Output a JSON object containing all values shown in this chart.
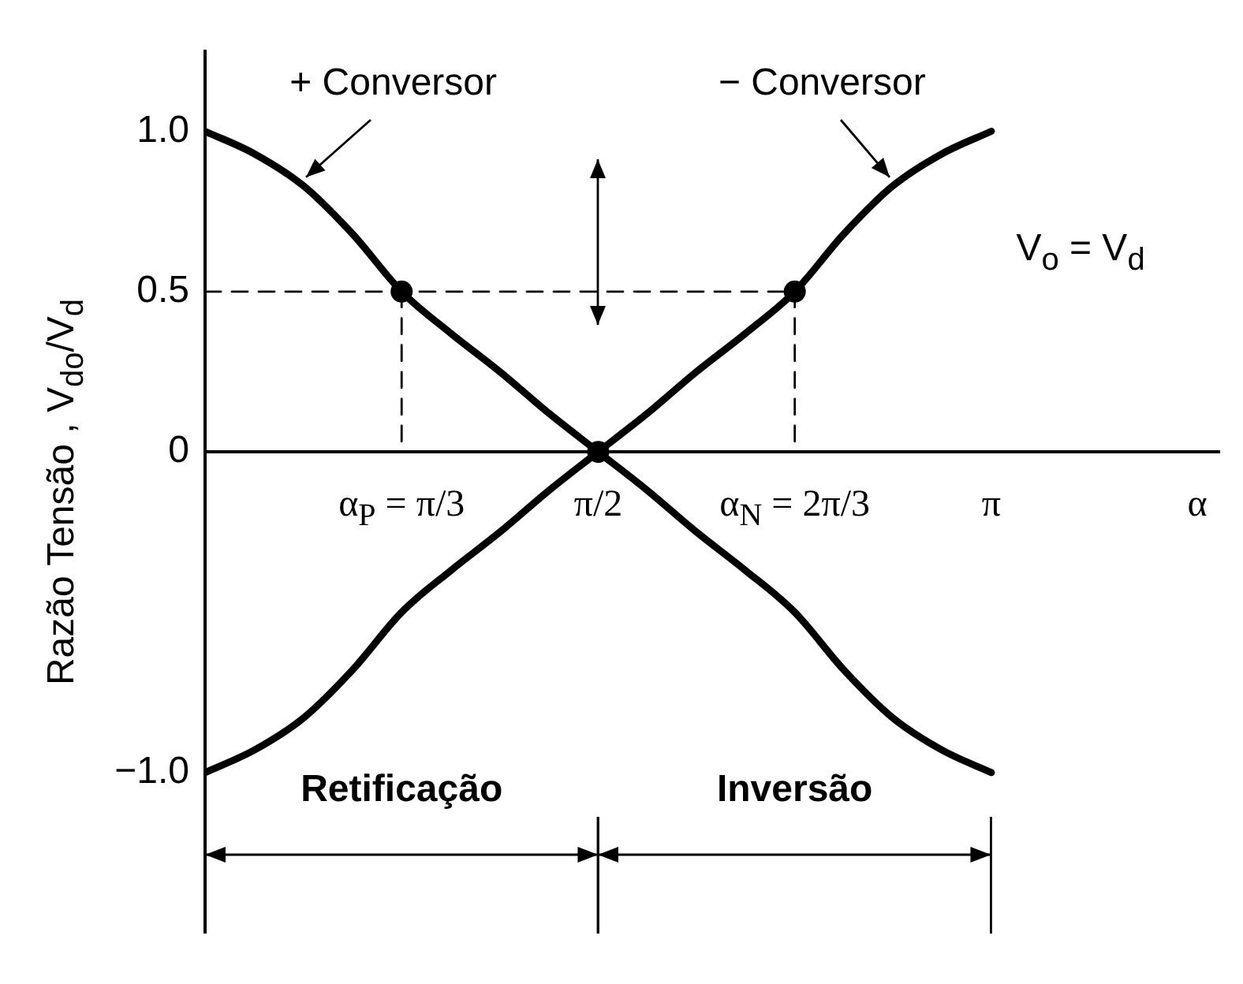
{
  "chart_data": {
    "type": "line",
    "xlabel": "α",
    "ylabel": "Razão Tensão , V$_{do}$/V$_{d}$",
    "annotations": [
      "V$_{o}$ = V$_{d}$",
      "Retificação",
      "Inversão"
    ],
    "categories": [
      null,
      null,
      null,
      null,
      "α$_{P}$ = π/3",
      null,
      null,
      null,
      "π/2",
      null,
      null,
      null,
      "α$_{N}$ = 2π/3",
      null,
      null,
      null,
      "π"
    ],
    "ylim": [
      -1.5,
      1.25
    ],
    "yticks": [
      {
        "value": 1,
        "label": "1.0"
      },
      0.5,
      0,
      {
        "value": -1,
        "label": "−1.0"
      }
    ],
    "series": [
      {
        "type": "line",
        "line_style": "dashed",
        "color": "#000000",
        "values": [
          0.5,
          0.5,
          0.5,
          0.5,
          0.5,
          0.5,
          0.5,
          0.5,
          0.5,
          0.5,
          0.5,
          0.5,
          0.5,
          null,
          null,
          null,
          null
        ]
      },
      {
        "type": "line",
        "line_style": "dashed",
        "color": "#000000",
        "x": [
          "α$_{P}$ = π/3",
          "α$_{P}$ = π/3"
        ],
        "values": [
          0.5,
          0
        ]
      },
      {
        "type": "line",
        "line_style": "dashed",
        "color": "#000000",
        "x": [
          "α$_{N}$ = 2π/3",
          "α$_{N}$ = 2π/3"
        ],
        "values": [
          0.5,
          0
        ]
      },
      {
        "name": "+ Conversor",
        "color": "#000000",
        "values": [
          1,
          0.93,
          0.83,
          0.68,
          0.5,
          0.37,
          0.25,
          0.12,
          0,
          -0.12,
          -0.25,
          -0.37,
          -0.5,
          -0.68,
          -0.83,
          -0.93,
          -1
        ]
      },
      {
        "name": "− Conversor",
        "color": "#000000",
        "values": [
          -1,
          -0.93,
          -0.83,
          -0.68,
          -0.5,
          -0.37,
          -0.25,
          -0.12,
          0,
          0.12,
          0.25,
          0.37,
          0.5,
          0.68,
          0.83,
          0.93,
          1
        ]
      },
      {
        "type": "scatter",
        "marker": "circle",
        "color": "#000000",
        "values": [
          null,
          null,
          null,
          null,
          0.5,
          null,
          null,
          null,
          0,
          null,
          null,
          null,
          0.5,
          null,
          null,
          null,
          null
        ]
      }
    ],
    "grid": false,
    "legend": false,
    "marker": "none",
    "line_style": "solid"
  }
}
